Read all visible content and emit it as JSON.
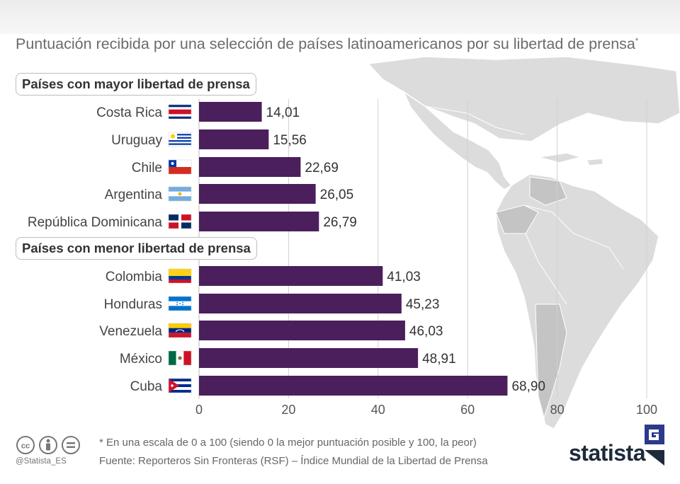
{
  "title": "Puntuación recibida por una selección de países latinoamericanos por su libertad de prensa",
  "title_marker": "*",
  "colors": {
    "bar": "#4a1f5c",
    "map_land": "#d8d8d8",
    "grid": "#d0d0d0",
    "text": "#333333"
  },
  "chart_data": {
    "type": "bar",
    "orientation": "horizontal",
    "xlim": [
      0,
      100
    ],
    "xticks": [
      0,
      20,
      40,
      60,
      80,
      100
    ],
    "groups": [
      {
        "label": "Países con mayor libertad de prensa",
        "items": [
          {
            "country": "Costa Rica",
            "value": 14.01,
            "label": "14,01",
            "flag": "costa-rica"
          },
          {
            "country": "Uruguay",
            "value": 15.56,
            "label": "15,56",
            "flag": "uruguay"
          },
          {
            "country": "Chile",
            "value": 22.69,
            "label": "22,69",
            "flag": "chile"
          },
          {
            "country": "Argentina",
            "value": 26.05,
            "label": "26,05",
            "flag": "argentina"
          },
          {
            "country": "República Dominicana",
            "value": 26.79,
            "label": "26,79",
            "flag": "dominican-republic"
          }
        ]
      },
      {
        "label": "Países con menor libertad de prensa",
        "items": [
          {
            "country": "Colombia",
            "value": 41.03,
            "label": "41,03",
            "flag": "colombia"
          },
          {
            "country": "Honduras",
            "value": 45.23,
            "label": "45,23",
            "flag": "honduras"
          },
          {
            "country": "Venezuela",
            "value": 46.03,
            "label": "46,03",
            "flag": "venezuela"
          },
          {
            "country": "México",
            "value": 48.91,
            "label": "48,91",
            "flag": "mexico"
          },
          {
            "country": "Cuba",
            "value": 68.9,
            "label": "68,90",
            "flag": "cuba"
          }
        ]
      }
    ]
  },
  "footer": {
    "note": "* En una escala de 0 a 100 (siendo 0 la mejor puntuación posible y 100, la peor)",
    "source": "Fuente: Reporteros Sin Fronteras (RSF) – Índice Mundial de la Libertad de Prensa",
    "handle": "@Statista_ES",
    "brand": "statista",
    "license_icons": [
      "cc-icon",
      "attribution-icon",
      "no-derivatives-icon"
    ]
  }
}
